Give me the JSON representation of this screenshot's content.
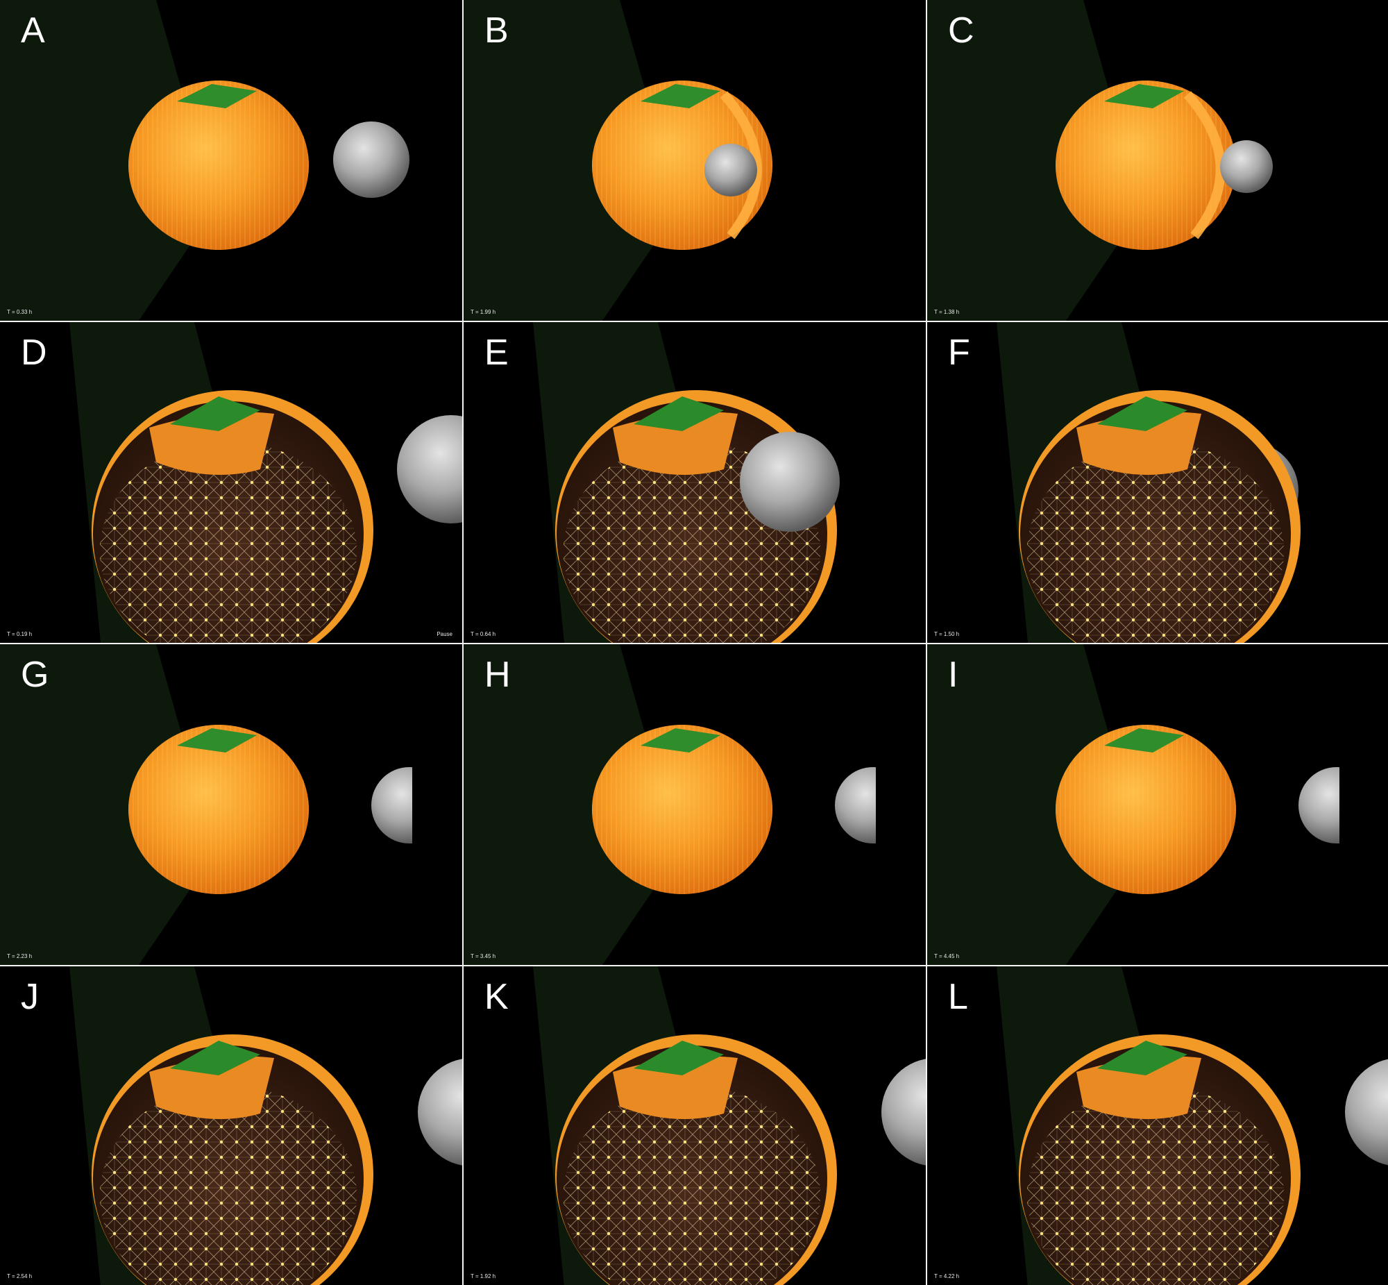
{
  "panels": [
    {
      "letter": "A",
      "time": "T = 0.33 h",
      "view": "external",
      "scene": "separate"
    },
    {
      "letter": "B",
      "time": "T = 1.99 h",
      "view": "external",
      "scene": "engulf"
    },
    {
      "letter": "C",
      "time": "T = 1.38 h",
      "view": "external",
      "scene": "contact"
    },
    {
      "letter": "D",
      "time": "T = 0.19 h",
      "view": "internal",
      "scene": "separate",
      "status": "Pause"
    },
    {
      "letter": "E",
      "time": "T = 0.64 h",
      "view": "internal",
      "scene": "contact"
    },
    {
      "letter": "F",
      "time": "T = 1.50 h",
      "view": "internal",
      "scene": "engulf"
    },
    {
      "letter": "G",
      "time": "T = 2.23 h",
      "view": "external",
      "scene": "half"
    },
    {
      "letter": "H",
      "time": "T = 3.45 h",
      "view": "external",
      "scene": "half"
    },
    {
      "letter": "I",
      "time": "T = 4.45 h",
      "view": "external",
      "scene": "half"
    },
    {
      "letter": "J",
      "time": "T = 2.54 h",
      "view": "internal",
      "scene": "edge"
    },
    {
      "letter": "K",
      "time": "T = 1.92 h",
      "view": "internal",
      "scene": "edge"
    },
    {
      "letter": "L",
      "time": "T = 4.22 h",
      "view": "internal",
      "scene": "edge"
    }
  ],
  "colors": {
    "cell": "#f08a1c",
    "cell_light": "#ffb43a",
    "cortex_cap": "#2c8a2c",
    "bead": "#9a9a9a",
    "background_plane": "#0e1a0c",
    "network": "#f3dca0"
  }
}
